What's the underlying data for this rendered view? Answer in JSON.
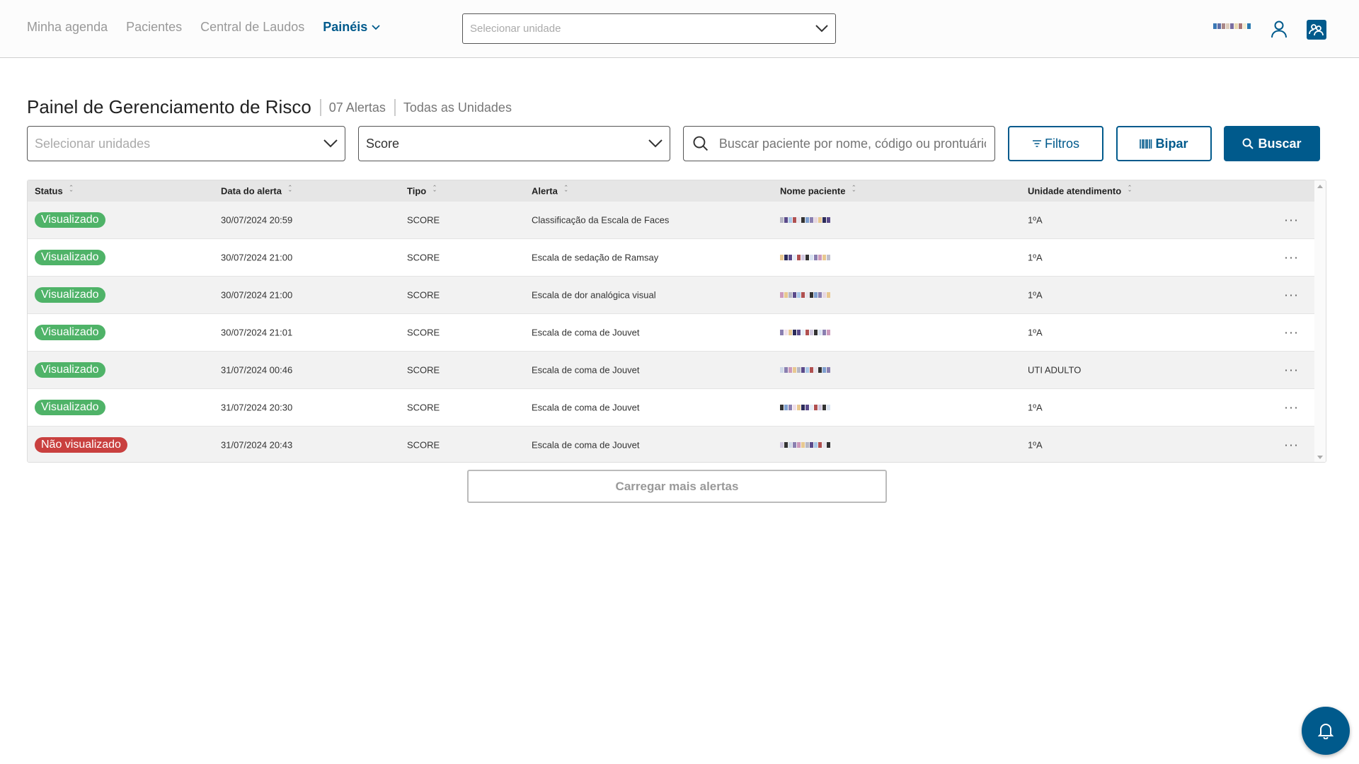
{
  "colors": {
    "primary": "#005a8c",
    "visualized": "#4fb368",
    "not_visualized": "#c9403f"
  },
  "nav": {
    "items": [
      "Minha agenda",
      "Pacientes",
      "Central de Laudos"
    ],
    "active": "Painéis"
  },
  "header": {
    "unit_placeholder": "Selecionar unidade"
  },
  "page": {
    "title": "Painel de Gerenciamento de Risco",
    "alert_count": "07 Alertas",
    "scope": "Todas as Unidades"
  },
  "filters": {
    "units_placeholder": "Selecionar unidades",
    "type_value": "Score",
    "search_placeholder": "Buscar paciente por nome, código ou prontuário",
    "filters_label": "Filtros",
    "bipar_label": "Bipar",
    "buscar_label": "Buscar"
  },
  "table": {
    "columns": [
      "Status",
      "Data do alerta",
      "Tipo",
      "Alerta",
      "Nome paciente",
      "Unidade atendimento"
    ],
    "rows": [
      {
        "status": "Visualizado",
        "seen": true,
        "date": "30/07/2024 20:59",
        "type": "SCORE",
        "alert": "Classificação da Escala de Faces",
        "unit": "1ºA"
      },
      {
        "status": "Visualizado",
        "seen": true,
        "date": "30/07/2024 21:00",
        "type": "SCORE",
        "alert": "Escala de sedação de Ramsay",
        "unit": "1ºA"
      },
      {
        "status": "Visualizado",
        "seen": true,
        "date": "30/07/2024 21:00",
        "type": "SCORE",
        "alert": "Escala de dor analógica visual",
        "unit": "1ºA"
      },
      {
        "status": "Visualizado",
        "seen": true,
        "date": "30/07/2024 21:01",
        "type": "SCORE",
        "alert": "Escala de coma de Jouvet",
        "unit": "1ºA"
      },
      {
        "status": "Visualizado",
        "seen": true,
        "date": "31/07/2024 00:46",
        "type": "SCORE",
        "alert": "Escala de coma de Jouvet",
        "unit": "UTI ADULTO"
      },
      {
        "status": "Visualizado",
        "seen": true,
        "date": "31/07/2024 20:30",
        "type": "SCORE",
        "alert": "Escala de coma de Jouvet",
        "unit": "1ºA"
      },
      {
        "status": "Não visualizado",
        "seen": false,
        "date": "31/07/2024 20:43",
        "type": "SCORE",
        "alert": "Escala de coma de Jouvet",
        "unit": "1ºA"
      }
    ]
  },
  "load_more_label": "Carregar mais alertas",
  "icons": {
    "user": "user-icon",
    "group": "group-icon",
    "search": "search-icon",
    "filter": "filter-icon",
    "barcode": "barcode-icon",
    "bell": "bell-icon",
    "more": "more-horizontal-icon"
  }
}
